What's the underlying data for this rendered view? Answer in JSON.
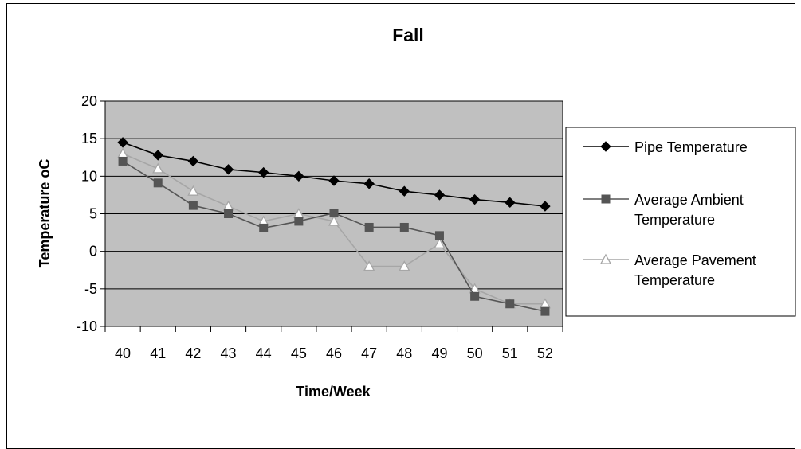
{
  "chart_data": {
    "type": "line",
    "title": "Fall",
    "xlabel": "Time/Week",
    "ylabel": "Temperature oC",
    "ylim": [
      -10,
      20
    ],
    "yticks": [
      -10,
      -5,
      0,
      5,
      10,
      15,
      20
    ],
    "categories": [
      "40",
      "41",
      "42",
      "43",
      "44",
      "45",
      "46",
      "47",
      "48",
      "49",
      "50",
      "51",
      "52"
    ],
    "grid": true,
    "legend_position": "right",
    "series": [
      {
        "name": "Pipe Temperature",
        "legend_lines": [
          "Pipe Temperature"
        ],
        "marker": "diamond",
        "color": "#000000",
        "values": [
          14.5,
          12.8,
          12.0,
          10.9,
          10.5,
          10.0,
          9.4,
          9.0,
          8.0,
          7.5,
          6.9,
          6.5,
          6.0
        ]
      },
      {
        "name": "Average Ambient Temperature",
        "legend_lines": [
          "Average Ambient",
          "Temperature"
        ],
        "marker": "square",
        "color": "#555555",
        "values": [
          12.0,
          9.1,
          6.1,
          5.0,
          3.1,
          4.0,
          5.1,
          3.2,
          3.2,
          2.1,
          -6.0,
          -7.0,
          -8.0
        ]
      },
      {
        "name": "Average Pavement Temperature",
        "legend_lines": [
          "Average Pavement",
          "Temperature"
        ],
        "marker": "triangle",
        "color": "#a6a6a6",
        "values": [
          13.0,
          11.0,
          8.0,
          6.0,
          4.0,
          5.0,
          4.0,
          -2.0,
          -2.0,
          1.0,
          -5.0,
          -7.0,
          -7.0
        ]
      }
    ],
    "colors": {
      "plot_area": "#c0c0c0",
      "grid": "#000000"
    }
  }
}
